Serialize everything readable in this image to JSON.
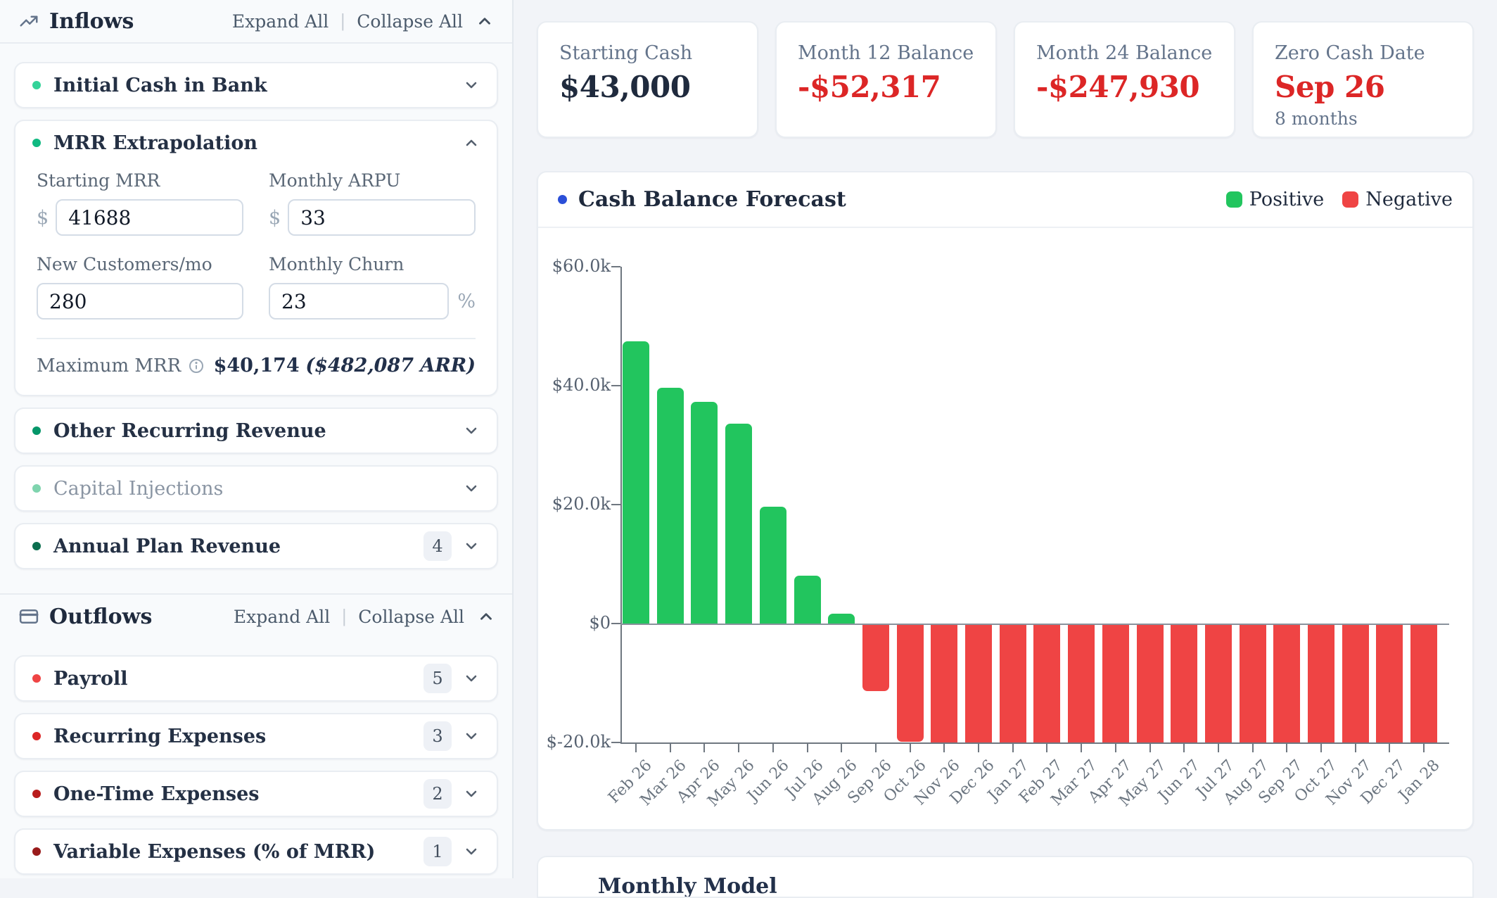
{
  "sidebar": {
    "inflows": {
      "title": "Inflows",
      "expand_all": "Expand All",
      "collapse_all": "Collapse All",
      "items": [
        {
          "label": "Initial Cash in Bank",
          "dot_color": "#34d399",
          "state": "collapsed"
        },
        {
          "label": "MRR Extrapolation",
          "dot_color": "#10b981",
          "state": "expanded"
        },
        {
          "label": "Other Recurring Revenue",
          "dot_color": "#059669",
          "state": "collapsed"
        },
        {
          "label": "Capital Injections",
          "dot_color": "#7fd4ae",
          "muted": true,
          "state": "collapsed"
        },
        {
          "label": "Annual Plan Revenue",
          "dot_color": "#0b6e4f",
          "badge": "4",
          "state": "collapsed"
        }
      ]
    },
    "mrr_panel": {
      "fields": [
        {
          "label": "Starting MRR",
          "prefix": "$",
          "value": "41688"
        },
        {
          "label": "Monthly ARPU",
          "prefix": "$",
          "value": "33"
        },
        {
          "label": "New Customers/mo",
          "value": "280"
        },
        {
          "label": "Monthly Churn",
          "value": "23",
          "suffix": "%"
        }
      ],
      "summary_label": "Maximum MRR",
      "summary_value": "$40,174",
      "summary_paren": "($482,087 ARR)"
    },
    "outflows": {
      "title": "Outflows",
      "expand_all": "Expand All",
      "collapse_all": "Collapse All",
      "items": [
        {
          "label": "Payroll",
          "dot_color": "#ef4444",
          "badge": "5",
          "state": "collapsed"
        },
        {
          "label": "Recurring Expenses",
          "dot_color": "#dc2626",
          "badge": "3",
          "state": "collapsed"
        },
        {
          "label": "One-Time Expenses",
          "dot_color": "#b91c1c",
          "badge": "2",
          "state": "collapsed"
        },
        {
          "label": "Variable Expenses (% of MRR)",
          "dot_color": "#991b1b",
          "badge": "1",
          "state": "collapsed"
        }
      ]
    }
  },
  "stats": [
    {
      "label": "Starting Cash",
      "value": "$43,000",
      "tone": "dark"
    },
    {
      "label": "Month 12 Balance",
      "value": "-$52,317",
      "tone": "red"
    },
    {
      "label": "Month 24 Balance",
      "value": "-$247,930",
      "tone": "red"
    },
    {
      "label": "Zero Cash Date",
      "value": "Sep 26",
      "sub": "8 months",
      "tone": "red"
    }
  ],
  "chart_data": {
    "type": "bar",
    "title": "Cash Balance Forecast",
    "legend": [
      {
        "label": "Positive",
        "color": "#22c55e"
      },
      {
        "label": "Negative",
        "color": "#ef4444"
      }
    ],
    "categories": [
      "Feb 26",
      "Mar 26",
      "Apr 26",
      "May 26",
      "Jun 26",
      "Jul 26",
      "Aug 26",
      "Sep 26",
      "Oct 26",
      "Nov 26",
      "Dec 26",
      "Jan 27",
      "Feb 27",
      "Mar 27",
      "Apr 27",
      "May 27",
      "Jun 27",
      "Jul 27",
      "Aug 27",
      "Sep 27",
      "Oct 27",
      "Nov 27",
      "Dec 27",
      "Jan 28"
    ],
    "values": [
      47500,
      39700,
      37300,
      33600,
      19700,
      8000,
      1700,
      -11100,
      -19600,
      -20000,
      -20000,
      -20000,
      -20000,
      -20000,
      -20000,
      -20000,
      -20000,
      -20000,
      -20000,
      -20000,
      -20000,
      -20000,
      -20000,
      -20000
    ],
    "clipped_at_ymin_from_index": 9,
    "positive_color": "#22c55e",
    "negative_color": "#ef4444",
    "ylim": [
      -20000,
      60000
    ],
    "ytick_values": [
      60000,
      40000,
      20000,
      0,
      -20000
    ],
    "ytick_labels": [
      "$60.0k",
      "$40.0k",
      "$20.0k",
      "$0",
      "$-20.0k"
    ],
    "grid": false,
    "legend_position": "top-right"
  },
  "partial_section": {
    "title": "Monthly Model"
  }
}
